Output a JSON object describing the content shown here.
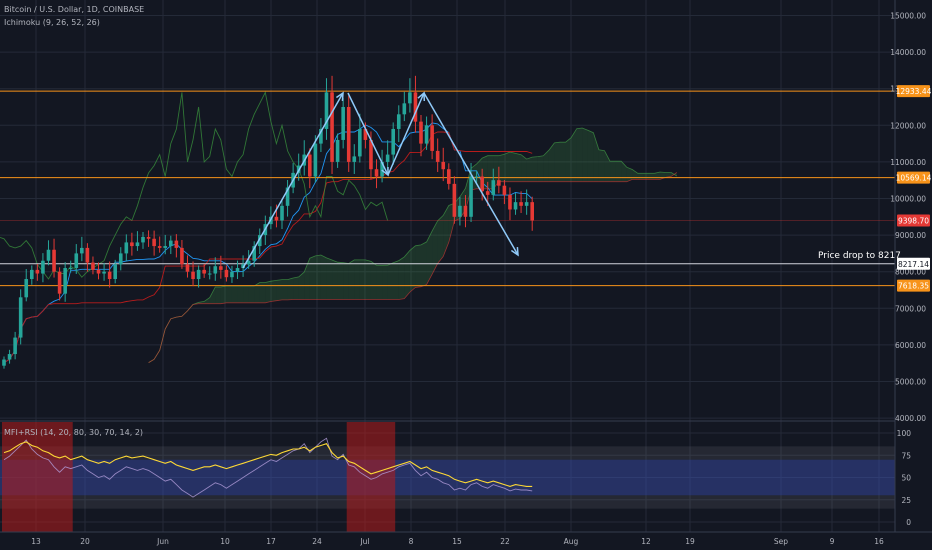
{
  "header": {
    "symbol": "Bitcoin / U.S. Dollar, 1D, COINBASE",
    "indicator": "Ichimoku (9, 26, 52, 26)",
    "oscillator": "MFI+RSI (14, 20, 80, 30, 70, 14, 2)"
  },
  "annotation": "Price drop to 8217",
  "chart_data": {
    "type": "candlestick",
    "xlabels": [
      "13",
      "20",
      "Jun",
      "10",
      "17",
      "24",
      "Jul",
      "8",
      "15",
      "22",
      "Aug",
      "12",
      "19",
      "Sep",
      "9",
      "16"
    ],
    "yticks": [
      4000,
      5000,
      6000,
      7000,
      8000,
      9000,
      10000,
      11000,
      12000,
      13000,
      14000,
      15000
    ],
    "ytick_labels": [
      "4000.00",
      "5000.00",
      "6000.00",
      "7000.00",
      "8000.00",
      "9000.00",
      "10000.00",
      "11000.00",
      "12000.00",
      "13000.00",
      "14000.00",
      "15000.00"
    ],
    "ylim": [
      3900,
      15300
    ],
    "price_labels": [
      {
        "value": 12933.44,
        "text": "12933.44",
        "color": "#f7931a"
      },
      {
        "value": 10569.14,
        "text": "10569.14",
        "color": "#f7931a"
      },
      {
        "value": 9398.7,
        "text": "9398.70",
        "color": "#e53935"
      },
      {
        "value": 8217.14,
        "text": "8217.14",
        "color": "#ffffff"
      },
      {
        "value": 7618.35,
        "text": "7618.35",
        "color": "#f7931a"
      }
    ],
    "horizontal_lines": [
      12933.44,
      10569.14,
      8217.14,
      7618.35
    ],
    "close_line": 9398.7,
    "closes": [
      5600,
      5750,
      6200,
      7300,
      7800,
      8050,
      7950,
      8300,
      8600,
      8000,
      7400,
      8100,
      8100,
      8500,
      8650,
      8250,
      8050,
      7950,
      8000,
      7800,
      8200,
      8500,
      8800,
      8700,
      8800,
      8950,
      8900,
      8700,
      8650,
      8700,
      8850,
      8650,
      8200,
      8000,
      7800,
      8050,
      7950,
      7950,
      8150,
      8050,
      7850,
      8000,
      8100,
      8200,
      8300,
      8700,
      9000,
      9300,
      9500,
      9400,
      9800,
      10300,
      10700,
      10900,
      11200,
      10600,
      11500,
      11900,
      12900,
      11000,
      11600,
      12500,
      11000,
      11150,
      11900,
      11600,
      10800,
      10600,
      11000,
      11200,
      11900,
      12300,
      12600,
      12900,
      12100,
      11500,
      12000,
      11300,
      11000,
      10800,
      10400,
      9500,
      9800,
      9500,
      10600,
      10600,
      10200,
      10100,
      10500,
      10350,
      10100,
      9700,
      9900,
      9800,
      9900,
      9400
    ],
    "mfi_rsi": {
      "yticks": [
        0,
        25,
        50,
        75,
        100
      ],
      "ylim": [
        -10,
        105
      ],
      "lower_band": 30,
      "upper_band": 70,
      "highlights": [
        {
          "from": 0,
          "to": 12
        },
        {
          "from": 62,
          "to": 70
        }
      ],
      "mfi": [
        78,
        80,
        84,
        88,
        90,
        86,
        84,
        80,
        78,
        74,
        72,
        74,
        70,
        72,
        74,
        70,
        68,
        66,
        68,
        66,
        70,
        72,
        74,
        72,
        73,
        74,
        72,
        70,
        68,
        66,
        68,
        64,
        62,
        60,
        58,
        60,
        62,
        62,
        64,
        62,
        60,
        62,
        64,
        66,
        68,
        70,
        72,
        74,
        76,
        75,
        78,
        80,
        82,
        82,
        84,
        80,
        84,
        86,
        88,
        78,
        72,
        74,
        68,
        66,
        62,
        58,
        54,
        56,
        58,
        60,
        62,
        64,
        66,
        68,
        64,
        60,
        62,
        58,
        56,
        54,
        52,
        48,
        46,
        44,
        46,
        48,
        46,
        44,
        46,
        44,
        42,
        40,
        42,
        41,
        40,
        40
      ],
      "rsi": [
        70,
        74,
        80,
        86,
        92,
        82,
        76,
        72,
        70,
        62,
        56,
        62,
        60,
        62,
        64,
        58,
        54,
        50,
        52,
        48,
        54,
        58,
        62,
        60,
        58,
        60,
        58,
        54,
        50,
        46,
        48,
        42,
        36,
        32,
        28,
        32,
        36,
        40,
        44,
        42,
        38,
        42,
        46,
        50,
        54,
        58,
        62,
        66,
        70,
        68,
        72,
        76,
        80,
        82,
        88,
        78,
        84,
        90,
        94,
        74,
        70,
        76,
        64,
        62,
        56,
        52,
        48,
        50,
        54,
        56,
        58,
        62,
        64,
        66,
        58,
        52,
        56,
        50,
        48,
        44,
        42,
        36,
        38,
        36,
        42,
        44,
        40,
        38,
        42,
        40,
        38,
        35,
        37,
        36,
        36,
        35
      ]
    }
  }
}
